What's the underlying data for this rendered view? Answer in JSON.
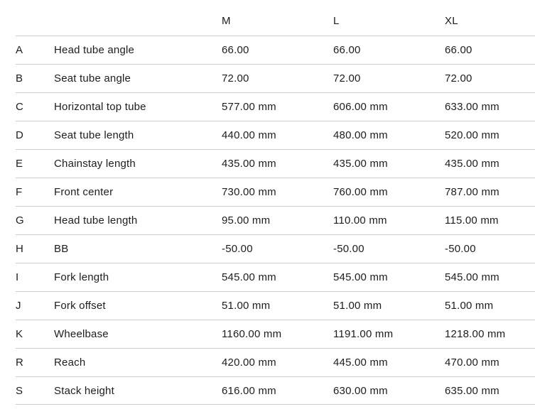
{
  "table": {
    "columns": [
      "M",
      "L",
      "XL"
    ],
    "rows": [
      {
        "key": "A",
        "label": "Head tube angle",
        "m": "66.00",
        "l": "66.00",
        "xl": "66.00"
      },
      {
        "key": "B",
        "label": "Seat tube angle",
        "m": "72.00",
        "l": "72.00",
        "xl": "72.00"
      },
      {
        "key": "C",
        "label": "Horizontal top tube",
        "m": "577.00 mm",
        "l": "606.00 mm",
        "xl": "633.00 mm"
      },
      {
        "key": "D",
        "label": "Seat tube length",
        "m": "440.00 mm",
        "l": "480.00 mm",
        "xl": "520.00 mm"
      },
      {
        "key": "E",
        "label": "Chainstay length",
        "m": "435.00 mm",
        "l": "435.00 mm",
        "xl": "435.00 mm"
      },
      {
        "key": "F",
        "label": "Front center",
        "m": "730.00 mm",
        "l": "760.00 mm",
        "xl": "787.00 mm"
      },
      {
        "key": "G",
        "label": "Head tube length",
        "m": "95.00 mm",
        "l": "110.00 mm",
        "xl": "115.00 mm"
      },
      {
        "key": "H",
        "label": "BB",
        "m": "-50.00",
        "l": "-50.00",
        "xl": "-50.00"
      },
      {
        "key": "I",
        "label": "Fork length",
        "m": "545.00 mm",
        "l": "545.00 mm",
        "xl": "545.00 mm"
      },
      {
        "key": "J",
        "label": "Fork offset",
        "m": "51.00 mm",
        "l": "51.00 mm",
        "xl": "51.00 mm"
      },
      {
        "key": "K",
        "label": "Wheelbase",
        "m": "1160.00 mm",
        "l": "1191.00 mm",
        "xl": "1218.00 mm"
      },
      {
        "key": "R",
        "label": "Reach",
        "m": "420.00 mm",
        "l": "445.00 mm",
        "xl": "470.00 mm"
      },
      {
        "key": "S",
        "label": "Stack height",
        "m": "616.00 mm",
        "l": "630.00 mm",
        "xl": "635.00 mm"
      }
    ]
  },
  "colors": {
    "text": "#1d1d1d",
    "divider": "#cccccc",
    "background": "#ffffff"
  }
}
